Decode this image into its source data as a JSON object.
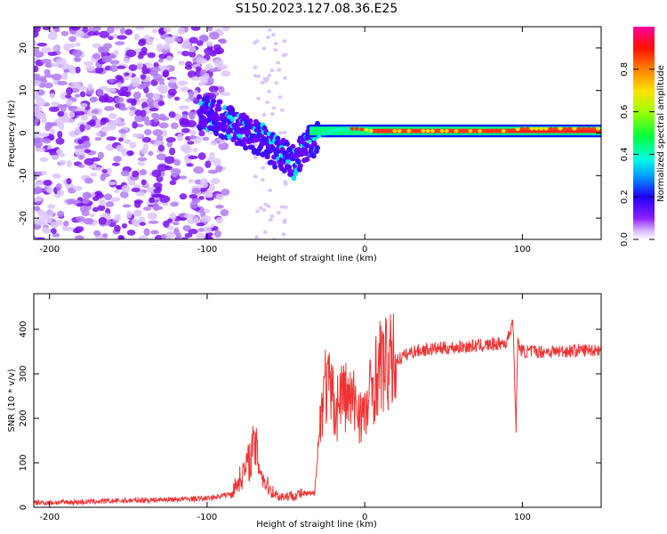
{
  "figure": {
    "title": "S150.2023.127.08.36.E25"
  },
  "chart_data": [
    {
      "type": "heatmap",
      "xlabel": "Height of straight line (km)",
      "ylabel": "Frequency (Hz)",
      "xlim": [
        -210,
        150
      ],
      "ylim": [
        -25,
        25
      ],
      "xticks": [
        -200,
        -100,
        0,
        100
      ],
      "yticks": [
        -20,
        -10,
        0,
        10,
        20
      ],
      "colorbar": {
        "label": "Normalized spectral amplitude",
        "range": [
          0,
          1
        ],
        "ticks": [
          0.0,
          0.2,
          0.4,
          0.6,
          0.8
        ],
        "tick_labels": [
          "0.0",
          "0.2",
          "0.4",
          "0.6",
          "0.8"
        ],
        "colormap": [
          "#ffffff",
          "#c8a0ff",
          "#7a00ff",
          "#0000ff",
          "#00ffff",
          "#00ff00",
          "#ffff00",
          "#ff8000",
          "#ff0000",
          "#ff00b0"
        ]
      },
      "ridge": {
        "x": [
          -105,
          -95,
          -85,
          -75,
          -65,
          -55,
          -45,
          -35,
          -25,
          -15,
          -5,
          5,
          20,
          40,
          60,
          80,
          90,
          100,
          120,
          150
        ],
        "freq": [
          5,
          4,
          2,
          0,
          -2,
          -5,
          -7,
          -2,
          0,
          1,
          1,
          0.5,
          0.5,
          0.5,
          0.5,
          0.5,
          0.5,
          1,
          1,
          1
        ],
        "amplitude": [
          0.4,
          0.35,
          0.35,
          0.35,
          0.35,
          0.35,
          0.3,
          0.45,
          0.55,
          0.65,
          0.75,
          0.85,
          0.85,
          0.85,
          0.85,
          0.85,
          0.85,
          0.85,
          0.85,
          0.85
        ]
      },
      "noise_region": {
        "x_range": [
          -210,
          -100
        ],
        "freq_range": [
          -25,
          25
        ],
        "amplitude": 0.2
      }
    },
    {
      "type": "line",
      "xlabel": "Height of straight line (km)",
      "ylabel": "SNR (10 * v/v)",
      "xlim": [
        -210,
        150
      ],
      "ylim": [
        0,
        480
      ],
      "xticks": [
        -200,
        -100,
        0,
        100
      ],
      "yticks": [
        0,
        100,
        200,
        300,
        400
      ],
      "color": "#ee3333",
      "x": [
        -210,
        -180,
        -150,
        -120,
        -100,
        -85,
        -80,
        -75,
        -72,
        -70,
        -67,
        -64,
        -60,
        -55,
        -50,
        -40,
        -32,
        -28,
        -26,
        -22,
        -18,
        -15,
        -10,
        -5,
        0,
        5,
        10,
        15,
        20,
        30,
        40,
        60,
        80,
        90,
        94,
        96,
        97,
        100,
        120,
        150
      ],
      "y": [
        10,
        12,
        15,
        18,
        20,
        30,
        60,
        90,
        120,
        140,
        100,
        60,
        40,
        25,
        25,
        30,
        30,
        200,
        280,
        260,
        220,
        260,
        240,
        230,
        200,
        280,
        320,
        320,
        330,
        350,
        355,
        360,
        365,
        370,
        420,
        180,
        370,
        350,
        350,
        355
      ]
    }
  ]
}
